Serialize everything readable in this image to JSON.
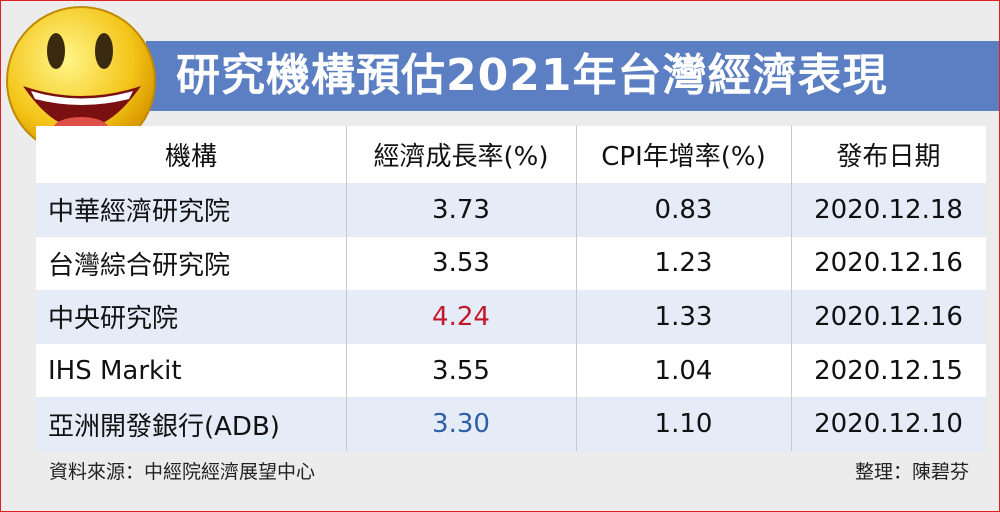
{
  "title": "研究機構預估2021年台灣經濟表現",
  "table": {
    "header": [
      "機構",
      "經濟成長率(%)",
      "CPI年增率(%)",
      "發布日期"
    ],
    "rows": [
      [
        "中華經濟研究院",
        "3.73",
        "0.83",
        "2020.12.18"
      ],
      [
        "台灣綜合研究院",
        "3.53",
        "1.23",
        "2020.12.16"
      ],
      [
        "中央研究院",
        "4.24",
        "1.33",
        "2020.12.16"
      ],
      [
        "IHS Markit",
        "3.55",
        "1.04",
        "2020.12.15"
      ],
      [
        "亞洲開發銀行(ADB)",
        "3.30",
        "1.10",
        "2020.12.10"
      ]
    ]
  },
  "footer": {
    "source": "資料來源：中經院經濟展望中心",
    "editor": "整理：陳碧芬"
  }
}
